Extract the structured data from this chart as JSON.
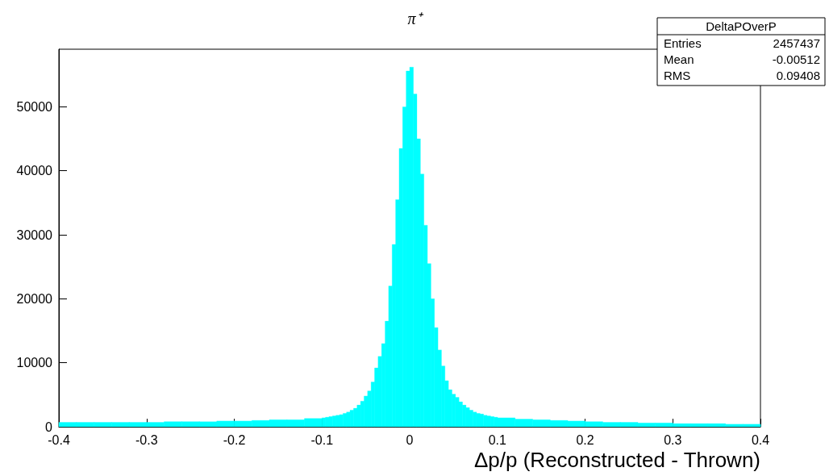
{
  "chart_data": {
    "type": "histogram",
    "title": "π⁺",
    "xlabel": "Δp/p (Reconstructed - Thrown)",
    "color": "#00ffff",
    "bins": [
      -0.4,
      -0.38,
      -0.36,
      -0.34,
      -0.32,
      -0.3,
      -0.28,
      -0.26,
      -0.24,
      -0.22,
      -0.2,
      -0.18,
      -0.16,
      -0.14,
      -0.12,
      -0.1,
      -0.096,
      -0.092,
      -0.088,
      -0.084,
      -0.08,
      -0.076,
      -0.072,
      -0.068,
      -0.064,
      -0.06,
      -0.056,
      -0.052,
      -0.048,
      -0.044,
      -0.04,
      -0.036,
      -0.032,
      -0.028,
      -0.024,
      -0.02,
      -0.016,
      -0.012,
      -0.008,
      -0.004,
      0,
      0.004,
      0.008,
      0.012,
      0.016,
      0.02,
      0.024,
      0.028,
      0.032,
      0.036,
      0.04,
      0.044,
      0.048,
      0.052,
      0.056,
      0.06,
      0.064,
      0.068,
      0.072,
      0.076,
      0.08,
      0.084,
      0.088,
      0.092,
      0.096,
      0.1,
      0.12,
      0.14,
      0.16,
      0.18,
      0.2,
      0.22,
      0.24,
      0.26,
      0.28,
      0.3,
      0.32,
      0.34,
      0.36,
      0.38,
      0.4
    ],
    "values": [
      700,
      700,
      700,
      700,
      700,
      700,
      800,
      800,
      800,
      900,
      900,
      1000,
      1100,
      1100,
      1300,
      1400,
      1500,
      1600,
      1700,
      1800,
      1900,
      2100,
      2300,
      2600,
      2900,
      3400,
      4000,
      4800,
      5600,
      7000,
      9200,
      11000,
      13000,
      16500,
      22000,
      28500,
      35500,
      43500,
      50000,
      55600,
      56200,
      52000,
      45000,
      39500,
      31500,
      25500,
      20000,
      15500,
      12000,
      9500,
      7200,
      5800,
      5100,
      4600,
      3900,
      3400,
      3000,
      2600,
      2300,
      2100,
      2000,
      1800,
      1700,
      1600,
      1500,
      1400,
      1200,
      1100,
      1000,
      900,
      800,
      700,
      700,
      600,
      600,
      500,
      500,
      500,
      400,
      400
    ],
    "xlim": [
      -0.4,
      0.4
    ],
    "xticks": [
      -0.4,
      -0.3,
      -0.2,
      -0.1,
      0,
      0.1,
      0.2,
      0.3,
      0.4
    ],
    "ylim": [
      0,
      59000
    ],
    "yticks": [
      0,
      10000,
      20000,
      30000,
      40000,
      50000
    ],
    "annotations": [
      "DeltaPOverP",
      "Entries 2457437",
      "Mean -0.00512",
      "RMS 0.09408"
    ]
  }
}
